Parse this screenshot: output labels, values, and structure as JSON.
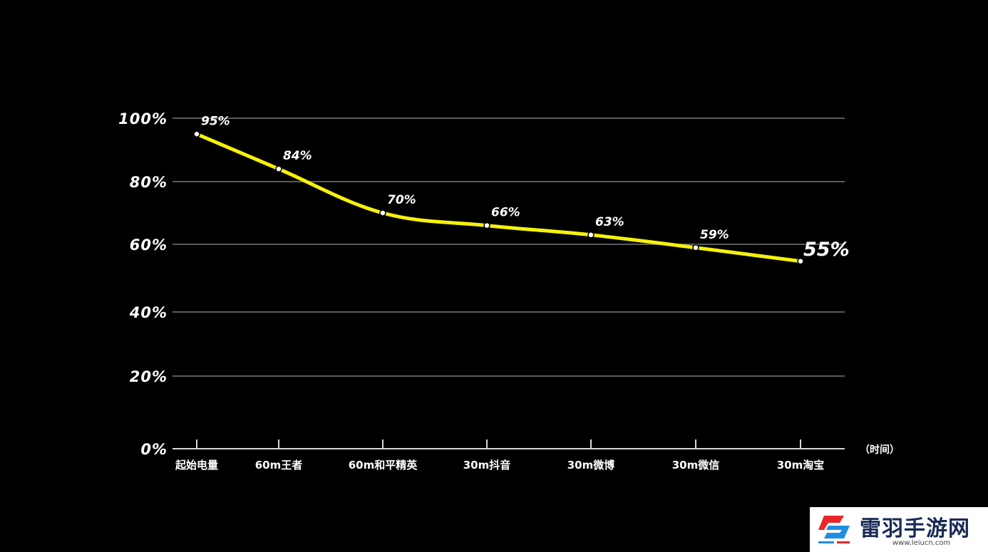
{
  "chart_data": {
    "type": "line",
    "categories": [
      "起始电量",
      "60m王者",
      "60m和平精英",
      "30m抖音",
      "30m微博",
      "30m微信",
      "30m淘宝"
    ],
    "series": [
      {
        "values": [
          95,
          84,
          70,
          66,
          63,
          59,
          55
        ],
        "labels": [
          "95%",
          "84%",
          "70%",
          "66%",
          "63%",
          "59%",
          "55%"
        ],
        "color": "#f5f20a"
      }
    ],
    "ytick_labels": [
      "100%",
      "80%",
      "60%",
      "40%",
      "20%",
      "0%"
    ],
    "yticks": [
      100,
      80,
      60,
      40,
      20,
      0
    ],
    "ylim": [
      0,
      100
    ],
    "x_unit_label": "（时间）",
    "grid": true,
    "gridline_color": "#5a5a5a",
    "axis_color": "#d8d8d8",
    "background": "#000000"
  },
  "watermark": {
    "name": "雷羽手游网",
    "url": "www.leiucn.com",
    "logo_colors": [
      "#e8262b",
      "#1e8fe0"
    ]
  }
}
